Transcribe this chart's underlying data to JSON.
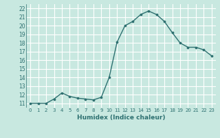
{
  "x": [
    0,
    1,
    2,
    3,
    4,
    5,
    6,
    7,
    8,
    9,
    10,
    11,
    12,
    13,
    14,
    15,
    16,
    17,
    18,
    19,
    20,
    21,
    22,
    23
  ],
  "y": [
    11,
    11,
    11,
    11.5,
    12.2,
    11.8,
    11.6,
    11.5,
    11.4,
    11.7,
    14.0,
    18.1,
    20.0,
    20.5,
    21.3,
    21.7,
    21.3,
    20.5,
    19.2,
    18.0,
    17.5,
    17.5,
    17.2,
    16.5
  ],
  "line_color": "#2d7070",
  "marker": "o",
  "marker_size": 2.2,
  "bg_color": "#c8e8e0",
  "grid_color": "#ffffff",
  "xlabel": "Humidex (Indice chaleur)",
  "xlim": [
    -0.5,
    23.5
  ],
  "ylim": [
    10.5,
    22.5
  ],
  "yticks": [
    11,
    12,
    13,
    14,
    15,
    16,
    17,
    18,
    19,
    20,
    21,
    22
  ],
  "xticks": [
    0,
    1,
    2,
    3,
    4,
    5,
    6,
    7,
    8,
    9,
    10,
    11,
    12,
    13,
    14,
    15,
    16,
    17,
    18,
    19,
    20,
    21,
    22,
    23
  ]
}
